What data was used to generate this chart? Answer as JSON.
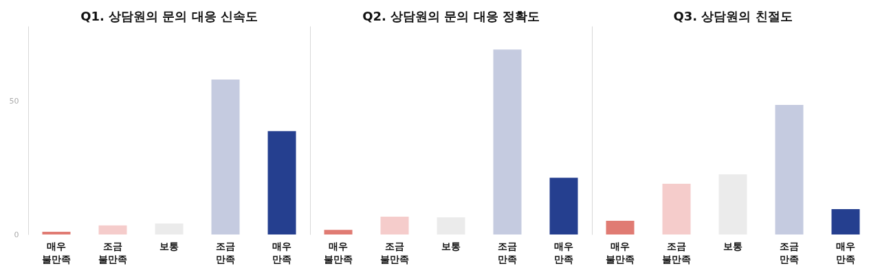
{
  "chart_data": [
    {
      "type": "bar",
      "title": "Q1. 상담원의 문의 대응 신속도",
      "categories": [
        "매우 불만족",
        "조금 불만족",
        "보통",
        "조금 만족",
        "매우 만족"
      ],
      "values": [
        1,
        3.4,
        4.1,
        58,
        38.7
      ],
      "colors": [
        "#e07b73",
        "#f5cccb",
        "#ebebeb",
        "#c5cbe0",
        "#253f8f"
      ],
      "ylim": [
        0,
        78
      ],
      "yticks": [
        0,
        50
      ]
    },
    {
      "type": "bar",
      "title": "Q2. 상담원의 문의 대응 정확도",
      "categories": [
        "매우 불만족",
        "조금 불만족",
        "보통",
        "조금 만족",
        "매우 만족"
      ],
      "values": [
        1.7,
        6.7,
        6.4,
        69.2,
        21.2
      ],
      "colors": [
        "#e07b73",
        "#f5cccb",
        "#ebebeb",
        "#c5cbe0",
        "#253f8f"
      ],
      "ylim": [
        0,
        78
      ],
      "tick_labels": "x"
    },
    {
      "type": "bar",
      "title": "Q3. 상담원의 친절도",
      "categories": [
        "매우 불만족",
        "조금 불만족",
        "보통",
        "조금 만족",
        "매우 만족"
      ],
      "values": [
        5.1,
        19,
        22.5,
        48.5,
        9.5
      ],
      "colors": [
        "#e07b73",
        "#f5cccb",
        "#ebebeb",
        "#c5cbe0",
        "#253f8f"
      ],
      "ylim": [
        0,
        78
      ],
      "tick_labels": "x"
    }
  ]
}
